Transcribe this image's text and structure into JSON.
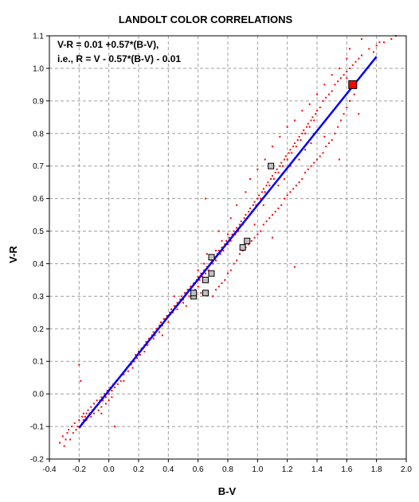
{
  "colors": {
    "background": "#ffffff",
    "axis": "#000000",
    "grid": "#a0a0a0",
    "scatter_point": "#ff0000",
    "fit_line": "#0000ff",
    "gray_marker": "#c0c0c0",
    "red_marker": "#ff0000"
  },
  "chart_data": {
    "type": "scatter",
    "title": "LANDOLT COLOR CORRELATIONS",
    "xlabel": "B-V",
    "ylabel": "V-R",
    "xlim": [
      -0.4,
      2.0
    ],
    "ylim": [
      -0.2,
      1.1
    ],
    "xticks": [
      "-0.4",
      "-0.2",
      "0.0",
      "0.2",
      "0.4",
      "0.6",
      "0.8",
      "1.0",
      "1.2",
      "1.4",
      "1.6",
      "1.8",
      "2.0"
    ],
    "yticks": [
      "-0.2",
      "-0.1",
      "0.0",
      "0.1",
      "0.2",
      "0.3",
      "0.4",
      "0.5",
      "0.6",
      "0.7",
      "0.8",
      "0.9",
      "1.0",
      "1.1"
    ],
    "grid": true,
    "annotations": [
      "V-R = 0.01 +0.57*(B-V),",
      "i.e., R = V - 0.57*(B-V) - 0.01"
    ],
    "fit_line": {
      "slope": 0.57,
      "intercept": 0.01,
      "x_range": [
        -0.2,
        1.8
      ]
    },
    "gray_squares": [
      {
        "x": 0.57,
        "y": 0.3
      },
      {
        "x": 0.57,
        "y": 0.31
      },
      {
        "x": 0.65,
        "y": 0.31
      },
      {
        "x": 0.65,
        "y": 0.35
      },
      {
        "x": 0.69,
        "y": 0.37
      },
      {
        "x": 0.69,
        "y": 0.42
      },
      {
        "x": 0.9,
        "y": 0.45
      },
      {
        "x": 0.93,
        "y": 0.47
      },
      {
        "x": 1.09,
        "y": 0.7
      }
    ],
    "red_square": {
      "x": 1.64,
      "y": 0.95
    },
    "scatter_points": [
      [
        -0.33,
        -0.15
      ],
      [
        -0.31,
        -0.13
      ],
      [
        -0.3,
        -0.16
      ],
      [
        -0.29,
        -0.14
      ],
      [
        -0.28,
        -0.12
      ],
      [
        -0.27,
        -0.11
      ],
      [
        -0.26,
        -0.14
      ],
      [
        -0.25,
        -0.1
      ],
      [
        -0.24,
        -0.12
      ],
      [
        -0.23,
        -0.09
      ],
      [
        -0.22,
        -0.11
      ],
      [
        -0.21,
        -0.1
      ],
      [
        -0.2,
        -0.08
      ],
      [
        -0.2,
        0.09
      ],
      [
        -0.19,
        -0.1
      ],
      [
        -0.19,
        0.04
      ],
      [
        -0.18,
        -0.09
      ],
      [
        -0.18,
        -0.07
      ],
      [
        -0.17,
        -0.08
      ],
      [
        -0.17,
        -0.06
      ],
      [
        -0.16,
        -0.07
      ],
      [
        -0.15,
        -0.06
      ],
      [
        -0.15,
        -0.08
      ],
      [
        -0.14,
        -0.05
      ],
      [
        -0.13,
        -0.06
      ],
      [
        -0.12,
        -0.04
      ],
      [
        -0.12,
        -0.07
      ],
      [
        -0.11,
        -0.05
      ],
      [
        -0.1,
        -0.03
      ],
      [
        -0.1,
        -0.06
      ],
      [
        -0.09,
        -0.04
      ],
      [
        -0.08,
        -0.02
      ],
      [
        -0.07,
        -0.05
      ],
      [
        -0.07,
        -0.03
      ],
      [
        -0.06,
        -0.02
      ],
      [
        -0.05,
        -0.01
      ],
      [
        -0.05,
        -0.04
      ],
      [
        -0.04,
        -0.02
      ],
      [
        -0.03,
        0.0
      ],
      [
        -0.02,
        -0.01
      ],
      [
        -0.02,
        -0.03
      ],
      [
        -0.01,
        0.01
      ],
      [
        0.0,
        0.0
      ],
      [
        0.0,
        -0.02
      ],
      [
        0.01,
        0.02
      ],
      [
        0.02,
        0.01
      ],
      [
        0.03,
        0.03
      ],
      [
        0.04,
        0.02
      ],
      [
        0.04,
        -0.1
      ],
      [
        0.05,
        0.04
      ],
      [
        0.06,
        0.03
      ],
      [
        0.07,
        0.05
      ],
      [
        0.08,
        0.04
      ],
      [
        0.09,
        0.06
      ],
      [
        0.1,
        0.06
      ],
      [
        0.11,
        0.07
      ],
      [
        0.12,
        0.08
      ],
      [
        0.13,
        0.07
      ],
      [
        0.14,
        0.09
      ],
      [
        0.15,
        0.09
      ],
      [
        0.16,
        0.1
      ],
      [
        0.17,
        0.1
      ],
      [
        0.18,
        0.12
      ],
      [
        0.19,
        0.11
      ],
      [
        0.2,
        0.13
      ],
      [
        0.21,
        0.12
      ],
      [
        0.22,
        0.14
      ],
      [
        0.23,
        0.14
      ],
      [
        0.24,
        0.15
      ],
      [
        0.25,
        0.16
      ],
      [
        0.26,
        0.15
      ],
      [
        0.27,
        0.17
      ],
      [
        0.28,
        0.17
      ],
      [
        0.29,
        0.18
      ],
      [
        0.3,
        0.19
      ],
      [
        0.31,
        0.18
      ],
      [
        0.32,
        0.2
      ],
      [
        0.33,
        0.2
      ],
      [
        0.34,
        0.21
      ],
      [
        0.35,
        0.22
      ],
      [
        0.36,
        0.21
      ],
      [
        0.37,
        0.23
      ],
      [
        0.38,
        0.23
      ],
      [
        0.39,
        0.24
      ],
      [
        0.4,
        0.24
      ],
      [
        0.41,
        0.25
      ],
      [
        0.42,
        0.26
      ],
      [
        0.43,
        0.25
      ],
      [
        0.44,
        0.27
      ],
      [
        0.45,
        0.27
      ],
      [
        0.46,
        0.28
      ],
      [
        0.47,
        0.28
      ],
      [
        0.48,
        0.29
      ],
      [
        0.49,
        0.3
      ],
      [
        0.5,
        0.29
      ],
      [
        0.51,
        0.31
      ],
      [
        0.52,
        0.31
      ],
      [
        0.53,
        0.32
      ],
      [
        0.54,
        0.32
      ],
      [
        0.55,
        0.33
      ],
      [
        0.56,
        0.33
      ],
      [
        0.57,
        0.34
      ],
      [
        0.58,
        0.34
      ],
      [
        0.59,
        0.35
      ],
      [
        0.6,
        0.36
      ],
      [
        0.6,
        0.33
      ],
      [
        0.61,
        0.35
      ],
      [
        0.62,
        0.37
      ],
      [
        0.63,
        0.36
      ],
      [
        0.64,
        0.38
      ],
      [
        0.65,
        0.37
      ],
      [
        0.66,
        0.39
      ],
      [
        0.67,
        0.38
      ],
      [
        0.68,
        0.4
      ],
      [
        0.69,
        0.41
      ],
      [
        0.7,
        0.4
      ],
      [
        0.71,
        0.42
      ],
      [
        0.72,
        0.41
      ],
      [
        0.73,
        0.43
      ],
      [
        0.74,
        0.44
      ],
      [
        0.75,
        0.43
      ],
      [
        0.76,
        0.45
      ],
      [
        0.77,
        0.44
      ],
      [
        0.78,
        0.46
      ],
      [
        0.79,
        0.47
      ],
      [
        0.8,
        0.46
      ],
      [
        0.81,
        0.48
      ],
      [
        0.82,
        0.47
      ],
      [
        0.83,
        0.49
      ],
      [
        0.84,
        0.5
      ],
      [
        0.85,
        0.49
      ],
      [
        0.86,
        0.51
      ],
      [
        0.87,
        0.5
      ],
      [
        0.88,
        0.52
      ],
      [
        0.89,
        0.53
      ],
      [
        0.9,
        0.52
      ],
      [
        0.91,
        0.54
      ],
      [
        0.92,
        0.55
      ],
      [
        0.93,
        0.54
      ],
      [
        0.94,
        0.56
      ],
      [
        0.95,
        0.57
      ],
      [
        0.96,
        0.56
      ],
      [
        0.97,
        0.58
      ],
      [
        0.98,
        0.59
      ],
      [
        0.99,
        0.58
      ],
      [
        1.0,
        0.6
      ],
      [
        1.01,
        0.61
      ],
      [
        1.02,
        0.6
      ],
      [
        1.03,
        0.62
      ],
      [
        1.04,
        0.63
      ],
      [
        1.05,
        0.62
      ],
      [
        1.06,
        0.64
      ],
      [
        1.07,
        0.65
      ],
      [
        1.08,
        0.64
      ],
      [
        1.09,
        0.66
      ],
      [
        1.1,
        0.67
      ],
      [
        1.11,
        0.66
      ],
      [
        1.12,
        0.68
      ],
      [
        1.13,
        0.69
      ],
      [
        1.14,
        0.68
      ],
      [
        1.15,
        0.7
      ],
      [
        1.16,
        0.71
      ],
      [
        1.17,
        0.7
      ],
      [
        1.18,
        0.72
      ],
      [
        1.19,
        0.73
      ],
      [
        1.2,
        0.72
      ],
      [
        1.21,
        0.74
      ],
      [
        1.22,
        0.75
      ],
      [
        1.23,
        0.74
      ],
      [
        1.24,
        0.76
      ],
      [
        1.25,
        0.77
      ],
      [
        1.26,
        0.76
      ],
      [
        1.27,
        0.78
      ],
      [
        1.28,
        0.79
      ],
      [
        1.29,
        0.78
      ],
      [
        1.3,
        0.8
      ],
      [
        1.31,
        0.81
      ],
      [
        1.32,
        0.8
      ],
      [
        1.33,
        0.82
      ],
      [
        1.34,
        0.83
      ],
      [
        1.35,
        0.82
      ],
      [
        1.36,
        0.84
      ],
      [
        1.37,
        0.85
      ],
      [
        1.38,
        0.84
      ],
      [
        1.39,
        0.86
      ],
      [
        1.4,
        0.87
      ],
      [
        1.42,
        0.88
      ],
      [
        1.44,
        0.9
      ],
      [
        1.46,
        0.91
      ],
      [
        1.48,
        0.92
      ],
      [
        1.5,
        0.93
      ],
      [
        1.52,
        0.95
      ],
      [
        1.54,
        0.96
      ],
      [
        1.56,
        0.97
      ],
      [
        1.58,
        0.98
      ],
      [
        1.6,
        0.99
      ],
      [
        1.62,
        1.0
      ],
      [
        1.64,
        1.01
      ],
      [
        1.66,
        1.02
      ],
      [
        1.68,
        1.03
      ],
      [
        1.7,
        1.04
      ],
      [
        1.75,
        1.06
      ],
      [
        1.8,
        1.07
      ],
      [
        1.85,
        1.08
      ],
      [
        1.9,
        1.09
      ],
      [
        1.93,
        1.1
      ],
      [
        0.7,
        0.3
      ],
      [
        0.72,
        0.32
      ],
      [
        0.74,
        0.33
      ],
      [
        0.76,
        0.34
      ],
      [
        0.78,
        0.35
      ],
      [
        0.8,
        0.37
      ],
      [
        0.82,
        0.38
      ],
      [
        0.84,
        0.4
      ],
      [
        0.86,
        0.41
      ],
      [
        0.88,
        0.43
      ],
      [
        0.9,
        0.44
      ],
      [
        0.92,
        0.45
      ],
      [
        0.94,
        0.46
      ],
      [
        0.96,
        0.47
      ],
      [
        0.98,
        0.48
      ],
      [
        1.0,
        0.49
      ],
      [
        1.02,
        0.5
      ],
      [
        1.04,
        0.52
      ],
      [
        1.06,
        0.53
      ],
      [
        1.08,
        0.54
      ],
      [
        1.1,
        0.55
      ],
      [
        1.12,
        0.56
      ],
      [
        1.14,
        0.57
      ],
      [
        1.16,
        0.58
      ],
      [
        1.18,
        0.6
      ],
      [
        1.2,
        0.61
      ],
      [
        1.22,
        0.62
      ],
      [
        1.24,
        0.63
      ],
      [
        1.26,
        0.64
      ],
      [
        1.28,
        0.65
      ],
      [
        1.3,
        0.66
      ],
      [
        1.32,
        0.68
      ],
      [
        1.34,
        0.69
      ],
      [
        1.36,
        0.7
      ],
      [
        1.38,
        0.71
      ],
      [
        1.4,
        0.72
      ],
      [
        1.42,
        0.73
      ],
      [
        1.44,
        0.74
      ],
      [
        1.46,
        0.76
      ],
      [
        1.48,
        0.77
      ],
      [
        1.5,
        0.78
      ],
      [
        1.52,
        0.8
      ],
      [
        1.54,
        0.82
      ],
      [
        1.56,
        0.84
      ],
      [
        1.58,
        0.86
      ],
      [
        1.6,
        0.88
      ],
      [
        1.62,
        0.9
      ],
      [
        1.65,
        0.92
      ],
      [
        0.95,
        0.66
      ],
      [
        1.0,
        0.69
      ],
      [
        1.05,
        0.72
      ],
      [
        1.1,
        0.76
      ],
      [
        1.15,
        0.79
      ],
      [
        1.2,
        0.82
      ],
      [
        1.25,
        0.84
      ],
      [
        1.3,
        0.87
      ],
      [
        1.35,
        0.89
      ],
      [
        1.4,
        0.92
      ],
      [
        1.45,
        0.95
      ],
      [
        1.5,
        0.98
      ],
      [
        1.55,
        1.0
      ],
      [
        1.6,
        1.03
      ],
      [
        1.62,
        1.06
      ],
      [
        1.7,
        1.09
      ],
      [
        1.78,
        1.05
      ],
      [
        1.82,
        1.08
      ],
      [
        0.65,
        0.6
      ],
      [
        1.05,
        0.62
      ],
      [
        1.1,
        0.48
      ],
      [
        1.25,
        0.39
      ],
      [
        1.45,
        0.79
      ],
      [
        1.55,
        0.72
      ],
      [
        1.68,
        0.86
      ],
      [
        1.6,
        0.97
      ],
      [
        0.44,
        0.3
      ],
      [
        0.36,
        0.18
      ],
      [
        0.52,
        0.27
      ],
      [
        0.62,
        0.31
      ],
      [
        0.66,
        0.43
      ],
      [
        0.74,
        0.5
      ],
      [
        0.82,
        0.54
      ],
      [
        0.86,
        0.58
      ],
      [
        0.92,
        0.62
      ],
      [
        0.98,
        0.52
      ],
      [
        1.04,
        0.58
      ],
      [
        1.14,
        0.64
      ],
      [
        1.18,
        0.66
      ],
      [
        1.22,
        0.7
      ],
      [
        1.28,
        0.72
      ],
      [
        1.32,
        0.75
      ],
      [
        1.36,
        0.77
      ],
      [
        1.38,
        0.8
      ],
      [
        -0.05,
        -0.06
      ],
      [
        0.02,
        -0.01
      ],
      [
        0.1,
        0.04
      ],
      [
        0.16,
        0.08
      ],
      [
        0.24,
        0.13
      ],
      [
        0.3,
        0.17
      ],
      [
        0.34,
        0.19
      ],
      [
        0.4,
        0.22
      ],
      [
        0.46,
        0.26
      ],
      [
        0.5,
        0.28
      ],
      [
        0.54,
        0.3
      ],
      [
        0.58,
        0.32
      ],
      [
        0.6,
        0.38
      ],
      [
        0.64,
        0.4
      ],
      [
        0.68,
        0.42
      ],
      [
        0.72,
        0.44
      ],
      [
        0.76,
        0.47
      ],
      [
        0.8,
        0.49
      ]
    ]
  }
}
